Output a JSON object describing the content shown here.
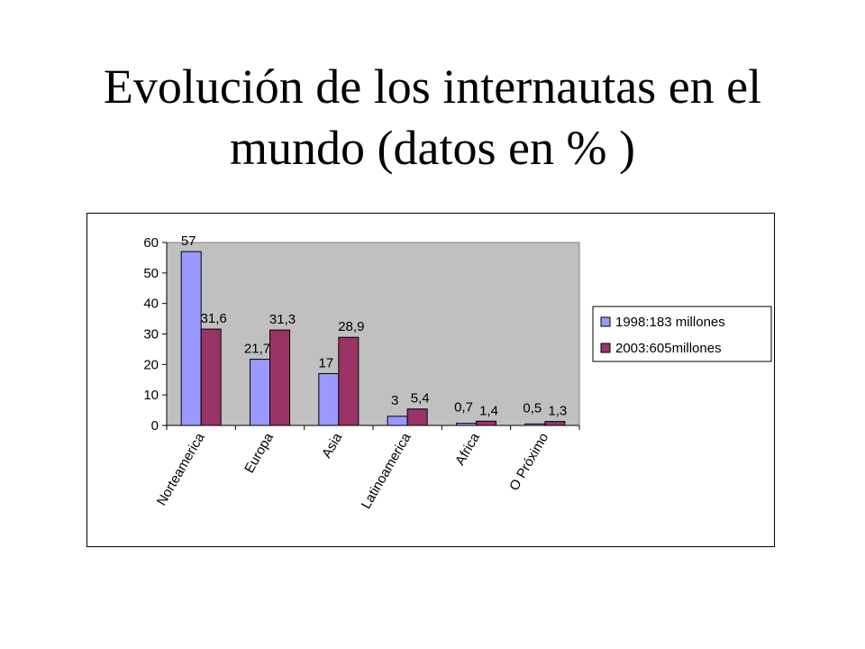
{
  "title_line1": "Evolución de los internautas en el",
  "title_line2": "mundo (datos en % )",
  "chart_data": {
    "type": "bar",
    "categories": [
      "Norteamerica",
      "Europa",
      "Asia",
      "Latinoamerica",
      "Africa",
      "O Próximo"
    ],
    "series": [
      {
        "name": "1998:183 millones",
        "values": [
          57,
          21.7,
          17,
          3,
          0.7,
          0.5
        ],
        "labels": [
          "57",
          "21,7",
          "17",
          "3",
          "0,7",
          "0,5"
        ],
        "color": "#9999ff"
      },
      {
        "name": "2003:605millones",
        "values": [
          31.6,
          31.3,
          28.9,
          5.4,
          1.4,
          1.3
        ],
        "labels": [
          "31,6",
          "31,3",
          "28,9",
          "5,4",
          "1,4",
          "1,3"
        ],
        "color": "#993366"
      }
    ],
    "y_ticks": [
      "0",
      "10",
      "20",
      "30",
      "40",
      "50",
      "60"
    ],
    "ylim": [
      0,
      60
    ],
    "plot_background": "#c0c0c0",
    "grid": false,
    "legend_position": "right"
  }
}
